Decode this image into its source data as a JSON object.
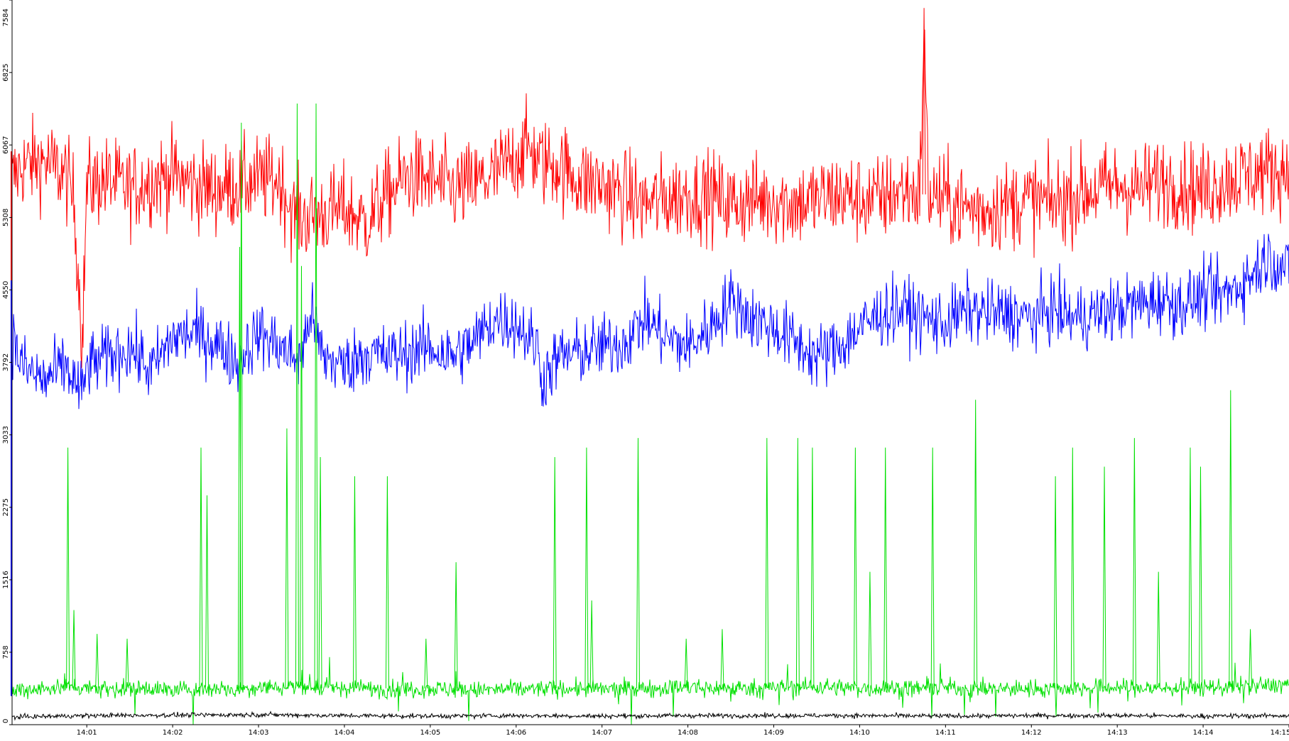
{
  "chart_data": {
    "type": "line",
    "title": "",
    "xlabel": "",
    "ylabel": "",
    "grid": false,
    "legend": "none",
    "xlim": [
      "14:00:08",
      "14:15:00"
    ],
    "ylim": [
      0,
      7584
    ],
    "y_ticks": [
      "0",
      "758",
      "1516",
      "2275",
      "3033",
      "3792",
      "4550",
      "5308",
      "6067",
      "6825",
      "7584"
    ],
    "x_ticks": [
      "14:01",
      "14:02",
      "14:03",
      "14:04",
      "14:05",
      "14:06",
      "14:07",
      "14:08",
      "14:09",
      "14:10",
      "14:11",
      "14:12",
      "14:13",
      "14:14",
      "14:15"
    ],
    "x_tick_minutes": [
      1,
      2,
      3,
      4,
      5,
      6,
      7,
      8,
      9,
      10,
      11,
      12,
      13,
      14,
      15
    ],
    "series": [
      {
        "color": "#ff0000",
        "x_minutes": [
          0.13,
          0.25,
          0.5,
          0.75,
          0.85,
          0.95,
          1.0,
          1.25,
          1.5,
          1.75,
          2.0,
          2.25,
          2.5,
          2.75,
          3.0,
          3.25,
          3.4,
          3.5,
          3.75,
          4.0,
          4.25,
          4.5,
          4.75,
          5.0,
          5.25,
          5.5,
          5.75,
          6.0,
          6.15,
          6.25,
          6.5,
          6.75,
          7.0,
          7.25,
          7.5,
          7.75,
          8.0,
          8.25,
          8.5,
          8.75,
          9.0,
          9.25,
          9.5,
          9.75,
          10.0,
          10.25,
          10.5,
          10.7,
          10.75,
          10.8,
          11.0,
          11.25,
          11.5,
          11.75,
          12.0,
          12.25,
          12.5,
          12.75,
          13.0,
          13.25,
          13.5,
          13.75,
          14.0,
          14.25,
          14.5,
          14.75,
          15.0
        ],
        "values": [
          5700,
          5850,
          5900,
          5750,
          5500,
          4000,
          5650,
          5700,
          5600,
          5700,
          5750,
          5650,
          5600,
          5650,
          5700,
          5700,
          5350,
          5300,
          5350,
          5400,
          5250,
          5550,
          5750,
          5700,
          5600,
          5650,
          5750,
          5950,
          6050,
          5900,
          5850,
          5700,
          5650,
          5550,
          5450,
          5500,
          5550,
          5550,
          5450,
          5500,
          5500,
          5450,
          5500,
          5550,
          5500,
          5500,
          5600,
          5550,
          7300,
          5550,
          5500,
          5400,
          5400,
          5450,
          5500,
          5450,
          5550,
          5600,
          5650,
          5600,
          5700,
          5650,
          5600,
          5700,
          5750,
          5800,
          5800
        ]
      },
      {
        "color": "#0000ff",
        "x_minutes": [
          0.13,
          0.25,
          0.5,
          0.75,
          0.95,
          1.0,
          1.25,
          1.5,
          1.75,
          2.0,
          2.25,
          2.5,
          2.75,
          3.0,
          3.25,
          3.5,
          3.6,
          3.75,
          4.0,
          4.25,
          4.5,
          4.75,
          5.0,
          5.25,
          5.5,
          5.75,
          6.0,
          6.25,
          6.3,
          6.5,
          6.75,
          7.0,
          7.25,
          7.5,
          7.75,
          8.0,
          8.25,
          8.5,
          8.75,
          9.0,
          9.25,
          9.5,
          9.75,
          10.0,
          10.25,
          10.5,
          10.75,
          11.0,
          11.25,
          11.5,
          11.75,
          12.0,
          12.25,
          12.5,
          12.75,
          13.0,
          13.25,
          13.5,
          13.75,
          14.0,
          14.25,
          14.5,
          14.75,
          15.0
        ],
        "values": [
          4050,
          3750,
          3600,
          3750,
          3450,
          3750,
          3850,
          3950,
          3700,
          4050,
          4100,
          4000,
          3800,
          4100,
          3950,
          3800,
          4350,
          3850,
          3750,
          3900,
          3850,
          3900,
          3950,
          3850,
          4000,
          4250,
          4200,
          3950,
          3600,
          3850,
          3900,
          3950,
          4000,
          4250,
          4050,
          3950,
          4150,
          4450,
          4250,
          4150,
          4000,
          3850,
          3950,
          4150,
          4300,
          4350,
          4250,
          4200,
          4350,
          4300,
          4300,
          4250,
          4350,
          4250,
          4300,
          4350,
          4400,
          4450,
          4400,
          4500,
          4500,
          4650,
          4900,
          4750
        ]
      },
      {
        "color": "#00e000",
        "x_minutes": [
          0.13,
          0.5,
          0.85,
          1.25,
          1.5,
          1.75,
          2.0,
          2.5,
          2.75,
          3.0,
          3.25,
          3.5,
          3.75,
          4.0,
          4.5,
          5.0,
          5.5,
          6.0,
          6.5,
          7.0,
          7.5,
          8.0,
          8.5,
          9.0,
          9.5,
          10.0,
          10.5,
          11.0,
          11.5,
          12.0,
          12.5,
          13.0,
          13.5,
          14.0,
          14.5,
          15.0
        ],
        "values": [
          350,
          380,
          400,
          380,
          370,
          380,
          360,
          380,
          370,
          400,
          390,
          420,
          380,
          390,
          370,
          380,
          360,
          370,
          380,
          370,
          380,
          390,
          380,
          390,
          400,
          380,
          380,
          390,
          370,
          380,
          380,
          390,
          380,
          390,
          400,
          420
        ]
      },
      {
        "color": "#000000",
        "x_minutes": [
          0.13,
          1.0,
          2.0,
          3.0,
          4.0,
          5.0,
          6.0,
          7.0,
          8.0,
          9.0,
          10.0,
          11.0,
          12.0,
          13.0,
          14.0,
          15.0
        ],
        "values": [
          80,
          95,
          100,
          105,
          95,
          90,
          95,
          90,
          95,
          95,
          95,
          90,
          95,
          95,
          90,
          95
        ]
      }
    ]
  }
}
